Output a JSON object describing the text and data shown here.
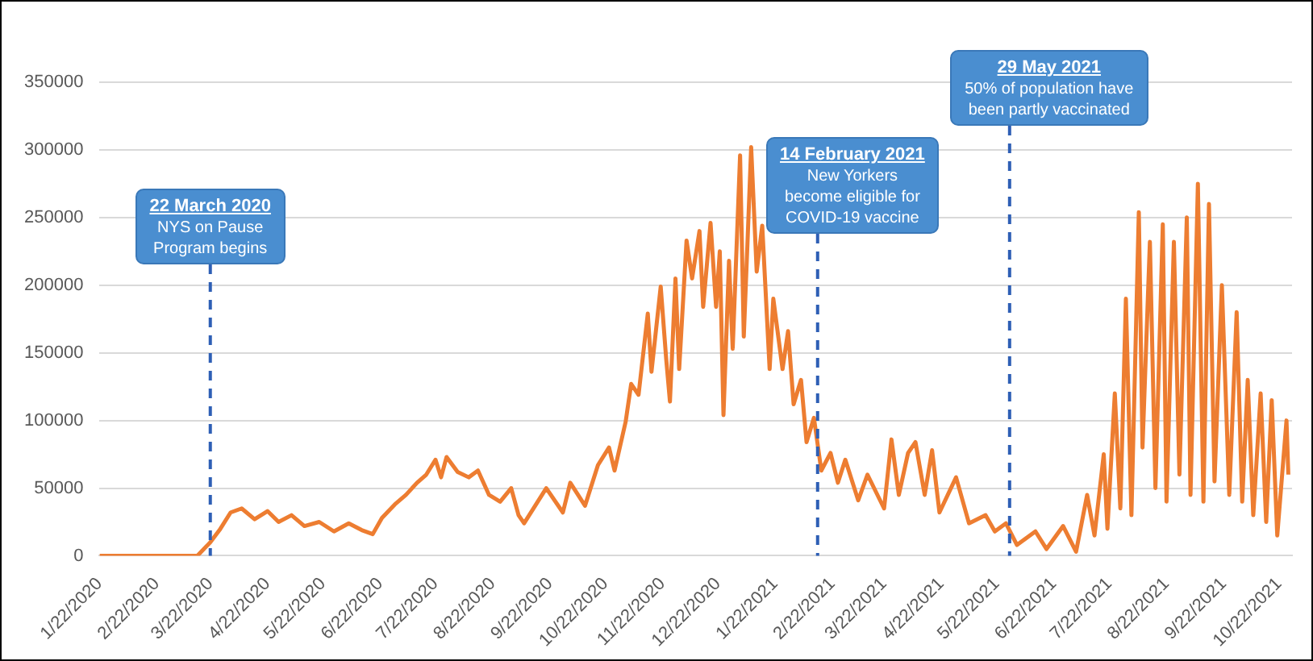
{
  "chart_data": {
    "type": "line",
    "x": [
      "2020-01-22",
      "2020-03-15",
      "2020-03-22",
      "2020-03-27",
      "2020-04-02",
      "2020-04-08",
      "2020-04-15",
      "2020-04-22",
      "2020-04-28",
      "2020-05-05",
      "2020-05-12",
      "2020-05-20",
      "2020-05-28",
      "2020-06-05",
      "2020-06-12",
      "2020-06-18",
      "2020-06-23",
      "2020-06-30",
      "2020-07-06",
      "2020-07-12",
      "2020-07-17",
      "2020-07-22",
      "2020-07-25",
      "2020-07-28",
      "2020-08-03",
      "2020-08-09",
      "2020-08-14",
      "2020-08-20",
      "2020-08-26",
      "2020-09-01",
      "2020-09-05",
      "2020-09-08",
      "2020-09-20",
      "2020-09-29",
      "2020-10-03",
      "2020-10-11",
      "2020-10-18",
      "2020-10-24",
      "2020-10-27",
      "2020-11-02",
      "2020-11-05",
      "2020-11-09",
      "2020-11-14",
      "2020-11-16",
      "2020-11-21",
      "2020-11-24",
      "2020-11-26",
      "2020-11-29",
      "2020-12-01",
      "2020-12-05",
      "2020-12-08",
      "2020-12-12",
      "2020-12-14",
      "2020-12-18",
      "2020-12-21",
      "2020-12-23",
      "2020-12-25",
      "2020-12-28",
      "2020-12-30",
      "2021-01-03",
      "2021-01-05",
      "2021-01-07",
      "2021-01-09",
      "2021-01-12",
      "2021-01-15",
      "2021-01-19",
      "2021-01-21",
      "2021-01-26",
      "2021-01-29",
      "2021-02-01",
      "2021-02-05",
      "2021-02-08",
      "2021-02-12",
      "2021-02-16",
      "2021-02-21",
      "2021-02-25",
      "2021-03-01",
      "2021-03-08",
      "2021-03-13",
      "2021-03-22",
      "2021-03-26",
      "2021-03-30",
      "2021-04-04",
      "2021-04-08",
      "2021-04-13",
      "2021-04-17",
      "2021-04-21",
      "2021-04-30",
      "2021-05-07",
      "2021-05-16",
      "2021-05-21",
      "2021-05-27",
      "2021-06-02",
      "2021-06-12",
      "2021-06-18",
      "2021-06-27",
      "2021-07-04",
      "2021-07-10",
      "2021-07-14",
      "2021-07-19",
      "2021-07-21",
      "2021-07-25",
      "2021-07-28",
      "2021-07-31",
      "2021-08-03",
      "2021-08-07",
      "2021-08-09",
      "2021-08-13",
      "2021-08-16",
      "2021-08-20",
      "2021-08-22",
      "2021-08-26",
      "2021-08-29",
      "2021-09-02",
      "2021-09-04",
      "2021-09-08",
      "2021-09-11",
      "2021-09-14",
      "2021-09-17",
      "2021-09-21",
      "2021-09-25",
      "2021-09-29",
      "2021-10-02",
      "2021-10-05",
      "2021-10-08",
      "2021-10-12",
      "2021-10-15",
      "2021-10-18",
      "2021-10-21",
      "2021-10-26",
      "2021-10-27"
    ],
    "series": [
      {
        "color": "#ed7d31",
        "values": [
          0,
          0,
          10000,
          19000,
          32000,
          35000,
          27000,
          33000,
          25000,
          30000,
          22000,
          25000,
          18000,
          24000,
          19000,
          16000,
          28000,
          38000,
          45000,
          54000,
          60000,
          71000,
          58000,
          73000,
          62000,
          58000,
          63000,
          45000,
          40000,
          50000,
          30000,
          24000,
          50000,
          32000,
          54000,
          37000,
          67000,
          80000,
          63000,
          99000,
          127000,
          119000,
          179000,
          136000,
          199000,
          145000,
          114000,
          205000,
          138000,
          233000,
          205000,
          240000,
          184000,
          246000,
          184000,
          225000,
          104000,
          218000,
          153000,
          296000,
          162000,
          231000,
          302000,
          210000,
          244000,
          138000,
          190000,
          138000,
          166000,
          112000,
          130000,
          84000,
          102000,
          63000,
          76000,
          54000,
          71000,
          41000,
          60000,
          35000,
          86000,
          45000,
          76000,
          84000,
          45000,
          78000,
          32000,
          58000,
          24000,
          30000,
          18000,
          24000,
          8000,
          18000,
          5000,
          22000,
          3000,
          45000,
          15000,
          75000,
          20000,
          120000,
          35000,
          190000,
          30000,
          254000,
          80000,
          232000,
          50000,
          245000,
          40000,
          232000,
          60000,
          250000,
          45000,
          275000,
          40000,
          260000,
          55000,
          200000,
          45000,
          180000,
          40000,
          130000,
          30000,
          120000,
          25000,
          115000,
          15000,
          100000,
          60000
        ]
      }
    ],
    "xlim": [
      "2020-01-22",
      "2021-10-29"
    ],
    "xticks": [
      {
        "value": "2020-01-22",
        "label": "1/22/2020"
      },
      {
        "value": "2020-02-22",
        "label": "2/22/2020"
      },
      {
        "value": "2020-03-22",
        "label": "3/22/2020"
      },
      {
        "value": "2020-04-22",
        "label": "4/22/2020"
      },
      {
        "value": "2020-05-22",
        "label": "5/22/2020"
      },
      {
        "value": "2020-06-22",
        "label": "6/22/2020"
      },
      {
        "value": "2020-07-22",
        "label": "7/22/2020"
      },
      {
        "value": "2020-08-22",
        "label": "8/22/2020"
      },
      {
        "value": "2020-09-22",
        "label": "9/22/2020"
      },
      {
        "value": "2020-10-22",
        "label": "10/22/2020"
      },
      {
        "value": "2020-11-22",
        "label": "11/22/2020"
      },
      {
        "value": "2020-12-22",
        "label": "12/22/2020"
      },
      {
        "value": "2021-01-22",
        "label": "1/22/2021"
      },
      {
        "value": "2021-02-22",
        "label": "2/22/2021"
      },
      {
        "value": "2021-03-22",
        "label": "3/22/2021"
      },
      {
        "value": "2021-04-22",
        "label": "4/22/2021"
      },
      {
        "value": "2021-05-22",
        "label": "5/22/2021"
      },
      {
        "value": "2021-06-22",
        "label": "6/22/2021"
      },
      {
        "value": "2021-07-22",
        "label": "7/22/2021"
      },
      {
        "value": "2021-08-22",
        "label": "8/22/2021"
      },
      {
        "value": "2021-09-22",
        "label": "9/22/2021"
      },
      {
        "value": "2021-10-22",
        "label": "10/22/2021"
      }
    ],
    "ylim": [
      0,
      350000
    ],
    "yticks": [
      0,
      50000,
      100000,
      150000,
      200000,
      250000,
      300000,
      350000
    ],
    "grid": "y",
    "marker": "none",
    "line_style": "solid",
    "ref_lines": [
      {
        "axis": "x",
        "value": "2020-03-22",
        "label": "22 March 2020\nNYS on Pause\nProgram begins",
        "color": "#2e5fb5",
        "line_style": "dashed"
      },
      {
        "axis": "x",
        "value": "2021-02-14",
        "label": "14 February 2021\nNew Yorkers\nbecome eligible for\nCOVID-19 vaccine",
        "color": "#2e5fb5",
        "line_style": "dashed"
      },
      {
        "axis": "x",
        "value": "2021-05-29",
        "label": "29 May 2021\n50% of population have\nbeen partly vaccinated",
        "color": "#2e5fb5",
        "line_style": "dashed"
      }
    ]
  }
}
